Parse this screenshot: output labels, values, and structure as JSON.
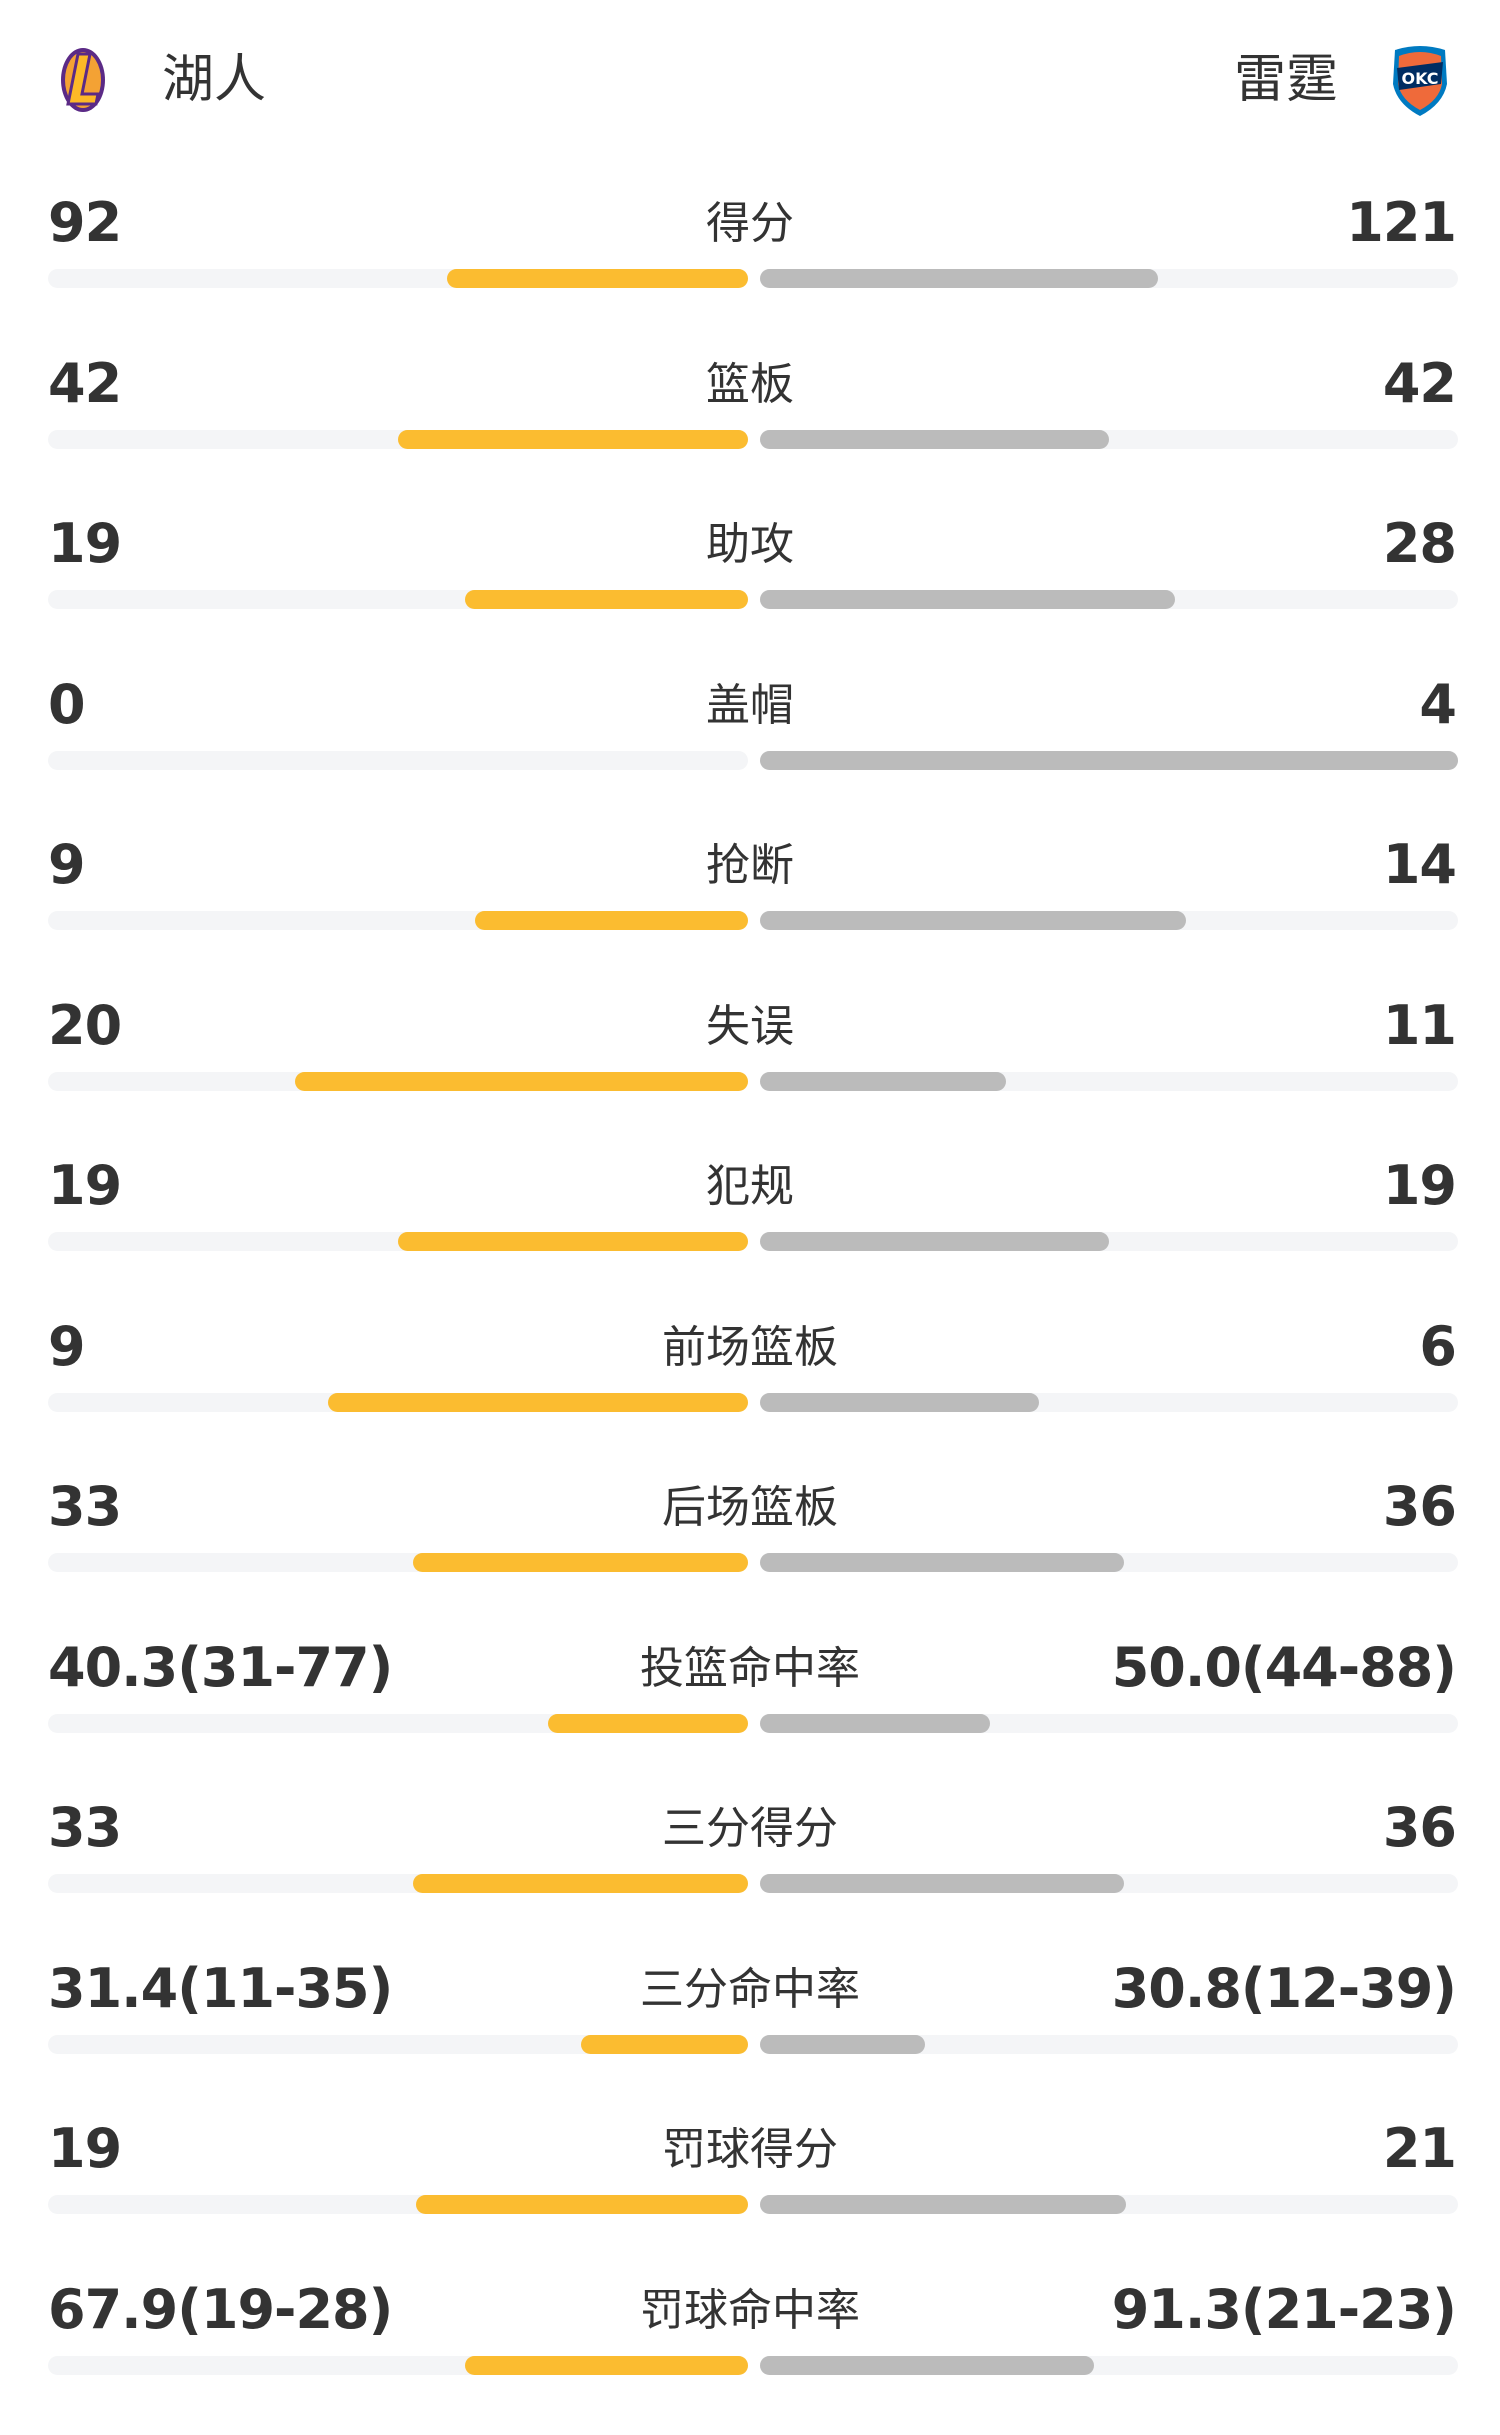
{
  "header": {
    "home_team": "湖人",
    "away_team": "雷霆",
    "home_logo_icon": "lakers-logo-icon",
    "away_logo_icon": "okc-thunder-logo-icon"
  },
  "colors": {
    "home_bar": "#FBBC30",
    "away_bar": "#BBBBBB",
    "track": "#F4F5F7",
    "text": "#333333"
  },
  "stats": [
    {
      "label": "得分",
      "home": "92",
      "away": "121",
      "home_fill": 0.43,
      "away_fill": 0.57
    },
    {
      "label": "篮板",
      "home": "42",
      "away": "42",
      "home_fill": 0.5,
      "away_fill": 0.5
    },
    {
      "label": "助攻",
      "home": "19",
      "away": "28",
      "home_fill": 0.405,
      "away_fill": 0.595
    },
    {
      "label": "盖帽",
      "home": "0",
      "away": "4",
      "home_fill": 0,
      "away_fill": 1.0
    },
    {
      "label": "抢断",
      "home": "9",
      "away": "14",
      "home_fill": 0.39,
      "away_fill": 0.61
    },
    {
      "label": "失误",
      "home": "20",
      "away": "11",
      "home_fill": 0.647,
      "away_fill": 0.353
    },
    {
      "label": "犯规",
      "home": "19",
      "away": "19",
      "home_fill": 0.5,
      "away_fill": 0.5
    },
    {
      "label": "前场篮板",
      "home": "9",
      "away": "6",
      "home_fill": 0.6,
      "away_fill": 0.4
    },
    {
      "label": "后场篮板",
      "home": "33",
      "away": "36",
      "home_fill": 0.478,
      "away_fill": 0.522
    },
    {
      "label": "投篮命中率",
      "home": "40.3(31-77)",
      "away": "50.0(44-88)",
      "home_fill": 0.286,
      "away_fill": 0.33
    },
    {
      "label": "三分得分",
      "home": "33",
      "away": "36",
      "home_fill": 0.478,
      "away_fill": 0.522
    },
    {
      "label": "三分命中率",
      "home": "31.4(11-35)",
      "away": "30.8(12-39)",
      "home_fill": 0.238,
      "away_fill": 0.236
    },
    {
      "label": "罚球得分",
      "home": "19",
      "away": "21",
      "home_fill": 0.475,
      "away_fill": 0.525
    },
    {
      "label": "罚球命中率",
      "home": "67.9(19-28)",
      "away": "91.3(21-23)",
      "home_fill": 0.405,
      "away_fill": 0.478
    }
  ]
}
